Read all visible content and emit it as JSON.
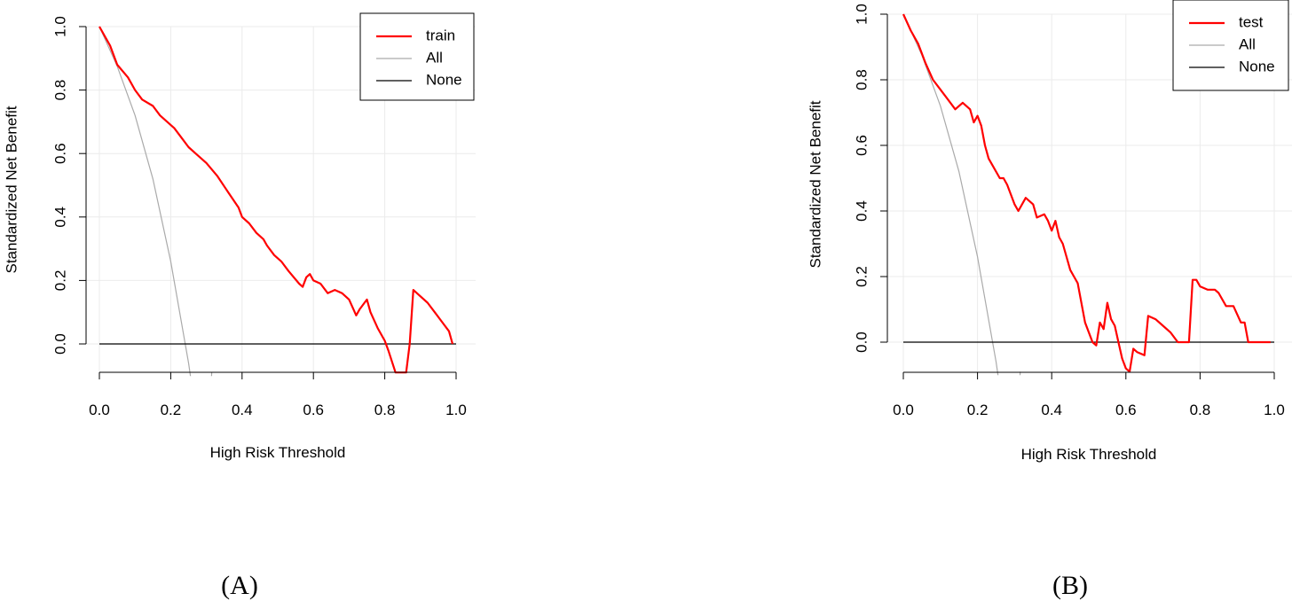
{
  "chart_data": [
    {
      "type": "line",
      "panel_label": "(A)",
      "xlabel": "High Risk Threshold",
      "ylabel": "Standardized Net Benefit",
      "xlim": [
        0,
        1
      ],
      "ylim": [
        -0.09,
        1.0
      ],
      "x_ticks": [
        "0.0",
        "0.2",
        "0.4",
        "0.6",
        "0.8",
        "1.0"
      ],
      "y_ticks": [
        "0.0",
        "0.2",
        "0.4",
        "0.6",
        "0.8",
        "1.0"
      ],
      "grid": true,
      "legend_position": "top-right",
      "series": [
        {
          "name": "train",
          "color": "#ff0000",
          "x": [
            0,
            0.03,
            0.05,
            0.08,
            0.1,
            0.12,
            0.15,
            0.17,
            0.19,
            0.21,
            0.23,
            0.25,
            0.27,
            0.3,
            0.33,
            0.36,
            0.39,
            0.4,
            0.42,
            0.44,
            0.46,
            0.47,
            0.49,
            0.51,
            0.53,
            0.56,
            0.57,
            0.58,
            0.59,
            0.6,
            0.62,
            0.64,
            0.66,
            0.68,
            0.7,
            0.72,
            0.73,
            0.75,
            0.76,
            0.78,
            0.8,
            0.81,
            0.83,
            0.86,
            0.87,
            0.88,
            0.9,
            0.92,
            0.94,
            0.96,
            0.98,
            0.99
          ],
          "values": [
            1.0,
            0.94,
            0.88,
            0.84,
            0.8,
            0.77,
            0.75,
            0.72,
            0.7,
            0.68,
            0.65,
            0.62,
            0.6,
            0.57,
            0.53,
            0.48,
            0.43,
            0.4,
            0.38,
            0.35,
            0.33,
            0.31,
            0.28,
            0.26,
            0.23,
            0.19,
            0.18,
            0.21,
            0.22,
            0.2,
            0.19,
            0.16,
            0.17,
            0.16,
            0.14,
            0.09,
            0.11,
            0.14,
            0.1,
            0.05,
            0.01,
            -0.02,
            -0.09,
            -0.09,
            0.0,
            0.17,
            0.15,
            0.13,
            0.1,
            0.07,
            0.04,
            0.0
          ]
        },
        {
          "name": "All",
          "color": "#aaaaaa",
          "x": [
            0,
            0.05,
            0.1,
            0.15,
            0.2,
            0.25,
            0.3,
            0.315
          ],
          "values": [
            1.0,
            0.875,
            0.72,
            0.52,
            0.26,
            -0.06,
            -0.45,
            -0.09
          ]
        },
        {
          "name": "None",
          "color": "#000000",
          "x": [
            0,
            1
          ],
          "values": [
            0,
            0
          ]
        }
      ]
    },
    {
      "type": "line",
      "panel_label": "(B)",
      "xlabel": "High Risk Threshold",
      "ylabel": "Standardized Net Benefit",
      "xlim": [
        0,
        1
      ],
      "ylim": [
        -0.09,
        1.0
      ],
      "x_ticks": [
        "0.0",
        "0.2",
        "0.4",
        "0.6",
        "0.8",
        "1.0"
      ],
      "y_ticks": [
        "0.0",
        "0.2",
        "0.4",
        "0.6",
        "0.8",
        "1.0"
      ],
      "grid": true,
      "legend_position": "top-right",
      "series": [
        {
          "name": "test",
          "color": "#ff0000",
          "x": [
            0,
            0.02,
            0.04,
            0.06,
            0.08,
            0.1,
            0.12,
            0.14,
            0.16,
            0.18,
            0.19,
            0.2,
            0.21,
            0.22,
            0.23,
            0.24,
            0.26,
            0.27,
            0.28,
            0.29,
            0.3,
            0.31,
            0.33,
            0.35,
            0.36,
            0.38,
            0.39,
            0.4,
            0.41,
            0.42,
            0.43,
            0.45,
            0.46,
            0.47,
            0.49,
            0.51,
            0.52,
            0.53,
            0.54,
            0.55,
            0.56,
            0.57,
            0.58,
            0.59,
            0.6,
            0.61,
            0.62,
            0.63,
            0.65,
            0.66,
            0.68,
            0.7,
            0.72,
            0.74,
            0.76,
            0.77,
            0.78,
            0.79,
            0.8,
            0.82,
            0.84,
            0.85,
            0.87,
            0.89,
            0.91,
            0.92,
            0.93,
            0.95,
            0.97,
            0.99
          ],
          "values": [
            1.0,
            0.95,
            0.91,
            0.85,
            0.8,
            0.77,
            0.74,
            0.71,
            0.73,
            0.71,
            0.67,
            0.69,
            0.66,
            0.6,
            0.56,
            0.54,
            0.5,
            0.5,
            0.48,
            0.45,
            0.42,
            0.4,
            0.44,
            0.42,
            0.38,
            0.39,
            0.37,
            0.34,
            0.37,
            0.32,
            0.3,
            0.22,
            0.2,
            0.18,
            0.06,
            0.0,
            -0.01,
            0.06,
            0.04,
            0.12,
            0.07,
            0.05,
            0.0,
            -0.05,
            -0.08,
            -0.09,
            -0.02,
            -0.03,
            -0.04,
            0.08,
            0.07,
            0.05,
            0.03,
            0.0,
            0.0,
            0.0,
            0.19,
            0.19,
            0.17,
            0.16,
            0.16,
            0.15,
            0.11,
            0.11,
            0.06,
            0.06,
            0.0,
            0.0,
            0.0,
            0.0
          ]
        },
        {
          "name": "All",
          "color": "#aaaaaa",
          "x": [
            0,
            0.05,
            0.1,
            0.15,
            0.2,
            0.25,
            0.3,
            0.315
          ],
          "values": [
            1.0,
            0.875,
            0.72,
            0.52,
            0.26,
            -0.06,
            -0.45,
            -0.09
          ]
        },
        {
          "name": "None",
          "color": "#000000",
          "x": [
            0,
            1
          ],
          "values": [
            0,
            0
          ]
        }
      ]
    }
  ]
}
